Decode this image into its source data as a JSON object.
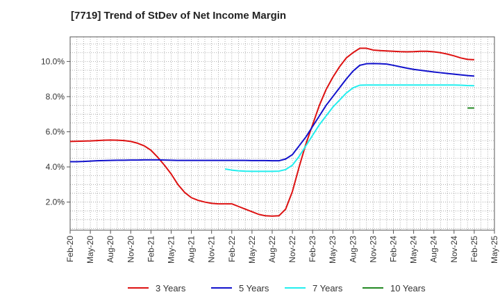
{
  "chart_data": {
    "type": "line",
    "title": "[7719]  Trend of StDev of Net Income Margin",
    "xlabel": "",
    "ylabel": "",
    "x_ticks": [
      "Feb-20",
      "May-20",
      "Aug-20",
      "Nov-20",
      "Feb-21",
      "May-21",
      "Aug-21",
      "Nov-21",
      "Feb-22",
      "May-22",
      "Aug-22",
      "Nov-22",
      "Feb-23",
      "May-23",
      "Aug-23",
      "Nov-23",
      "Feb-24",
      "May-24",
      "Aug-24",
      "Nov-24",
      "Feb-25",
      "May-25"
    ],
    "y_ticks": [
      {
        "value": 2.0,
        "label": "2.0%"
      },
      {
        "value": 4.0,
        "label": "4.0%"
      },
      {
        "value": 6.0,
        "label": "6.0%"
      },
      {
        "value": 8.0,
        "label": "8.0%"
      },
      {
        "value": 10.0,
        "label": "10.0%"
      }
    ],
    "ylim": [
      0.4,
      11.4
    ],
    "grid": true,
    "legend_position": "bottom",
    "series": [
      {
        "name": "3 Years",
        "color": "#dd1111",
        "values": [
          5.45,
          5.46,
          5.47,
          5.48,
          5.5,
          5.52,
          5.53,
          5.52,
          5.5,
          5.45,
          5.35,
          5.2,
          4.95,
          4.55,
          4.1,
          3.6,
          3.0,
          2.55,
          2.25,
          2.1,
          2.0,
          1.93,
          1.9,
          1.9,
          1.9,
          1.75,
          1.6,
          1.45,
          1.3,
          1.22,
          1.2,
          1.22,
          1.6,
          2.6,
          4.0,
          5.3,
          6.4,
          7.5,
          8.4,
          9.1,
          9.7,
          10.2,
          10.5,
          10.75,
          10.75,
          10.65,
          10.62,
          10.6,
          10.58,
          10.56,
          10.55,
          10.56,
          10.58,
          10.58,
          10.55,
          10.5,
          10.42,
          10.32,
          10.2,
          10.12,
          10.1
        ]
      },
      {
        "name": "5 Years",
        "color": "#1111cc",
        "values": [
          4.3,
          4.3,
          4.31,
          4.33,
          4.35,
          4.36,
          4.37,
          4.38,
          4.38,
          4.39,
          4.39,
          4.4,
          4.4,
          4.4,
          4.39,
          4.38,
          4.37,
          4.37,
          4.37,
          4.37,
          4.37,
          4.37,
          4.37,
          4.37,
          4.37,
          4.37,
          4.37,
          4.36,
          4.36,
          4.36,
          4.35,
          4.35,
          4.45,
          4.7,
          5.2,
          5.7,
          6.3,
          6.9,
          7.5,
          8.0,
          8.5,
          9.0,
          9.45,
          9.78,
          9.87,
          9.88,
          9.87,
          9.85,
          9.78,
          9.7,
          9.62,
          9.55,
          9.5,
          9.45,
          9.4,
          9.36,
          9.32,
          9.28,
          9.24,
          9.2,
          9.17
        ]
      },
      {
        "name": "7 Years",
        "color": "#22eeee",
        "values": [
          null,
          null,
          null,
          null,
          null,
          null,
          null,
          null,
          null,
          null,
          null,
          null,
          null,
          null,
          null,
          null,
          null,
          null,
          null,
          null,
          null,
          null,
          null,
          3.88,
          3.82,
          3.78,
          3.76,
          3.75,
          3.75,
          3.75,
          3.75,
          3.76,
          3.85,
          4.1,
          4.6,
          5.2,
          5.8,
          6.4,
          6.9,
          7.4,
          7.8,
          8.2,
          8.5,
          8.65,
          8.66,
          8.66,
          8.66,
          8.66,
          8.66,
          8.66,
          8.66,
          8.66,
          8.66,
          8.66,
          8.66,
          8.66,
          8.66,
          8.66,
          8.65,
          8.63,
          8.62
        ]
      },
      {
        "name": "10 Years",
        "color": "#228822",
        "values": [
          null,
          null,
          null,
          null,
          null,
          null,
          null,
          null,
          null,
          null,
          null,
          null,
          null,
          null,
          null,
          null,
          null,
          null,
          null,
          null,
          null,
          null,
          null,
          null,
          null,
          null,
          null,
          null,
          null,
          null,
          null,
          null,
          null,
          null,
          null,
          null,
          null,
          null,
          null,
          null,
          null,
          null,
          null,
          null,
          null,
          null,
          null,
          null,
          null,
          null,
          null,
          null,
          null,
          null,
          null,
          null,
          null,
          null,
          null,
          7.35,
          7.35
        ]
      }
    ]
  }
}
